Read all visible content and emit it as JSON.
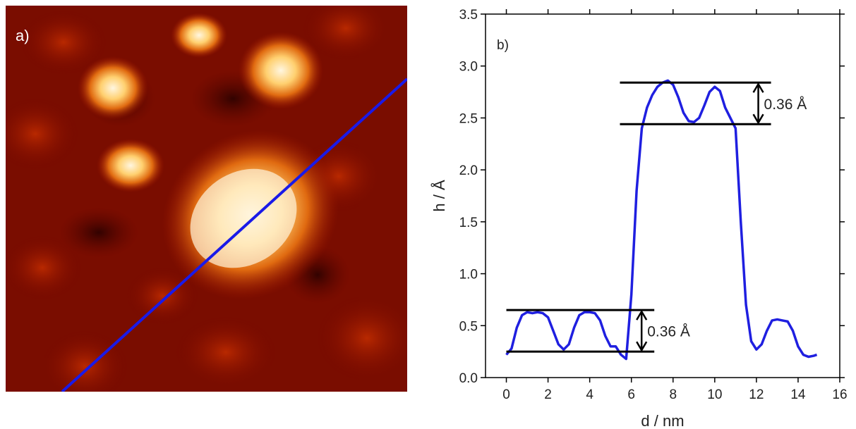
{
  "panel_a": {
    "label": "a)"
  },
  "chart_data": {
    "type": "line",
    "panel_label": "b)",
    "xlabel": "d / nm",
    "ylabel": "h / Å",
    "xlim": [
      -1,
      16
    ],
    "ylim": [
      0,
      3.5
    ],
    "xticks": [
      0,
      2,
      4,
      6,
      8,
      10,
      12,
      14,
      16
    ],
    "yticks": [
      {
        "value": 0,
        "label": "0.0"
      },
      0.5,
      {
        "value": 1,
        "label": "1.0"
      },
      1.5,
      {
        "value": 2,
        "label": "2.0"
      },
      2.5,
      {
        "value": 3,
        "label": "3.0"
      },
      3.5
    ],
    "series": [
      {
        "color": "#1f1fe0",
        "x": [
          0,
          0.25,
          0.5,
          0.75,
          1,
          1.25,
          1.5,
          1.75,
          2,
          2.25,
          2.5,
          2.75,
          3,
          3.25,
          3.5,
          3.75,
          4,
          4.25,
          4.5,
          4.75,
          5,
          5.25,
          5.5,
          5.75,
          6,
          6.25,
          6.5,
          6.75,
          7,
          7.25,
          7.5,
          7.75,
          8,
          8.25,
          8.5,
          8.75,
          9,
          9.25,
          9.5,
          9.75,
          10,
          10.25,
          10.5,
          10.75,
          11,
          11.25,
          11.5,
          11.75,
          12,
          12.25,
          12.5,
          12.75,
          13,
          13.25,
          13.5,
          13.75,
          14,
          14.25,
          14.5,
          14.75,
          14.9
        ],
        "values": [
          0.22,
          0.28,
          0.48,
          0.6,
          0.63,
          0.62,
          0.63,
          0.62,
          0.58,
          0.45,
          0.32,
          0.27,
          0.32,
          0.48,
          0.6,
          0.63,
          0.63,
          0.62,
          0.55,
          0.4,
          0.3,
          0.3,
          0.22,
          0.18,
          0.8,
          1.8,
          2.4,
          2.6,
          2.72,
          2.8,
          2.84,
          2.86,
          2.82,
          2.7,
          2.55,
          2.47,
          2.46,
          2.5,
          2.62,
          2.75,
          2.8,
          2.76,
          2.6,
          2.5,
          2.4,
          1.5,
          0.7,
          0.35,
          0.27,
          0.32,
          0.45,
          0.55,
          0.56,
          0.55,
          0.54,
          0.45,
          0.3,
          0.22,
          0.2,
          0.21,
          0.22
        ]
      }
    ],
    "annotations": [
      {
        "label": "0.36 Å",
        "x": [
          0,
          7.1
        ],
        "y": [
          0.25,
          0.65
        ]
      },
      {
        "label": "0.36 Å",
        "x": [
          5.45,
          12.7
        ],
        "y": [
          2.44,
          2.84
        ]
      }
    ]
  }
}
